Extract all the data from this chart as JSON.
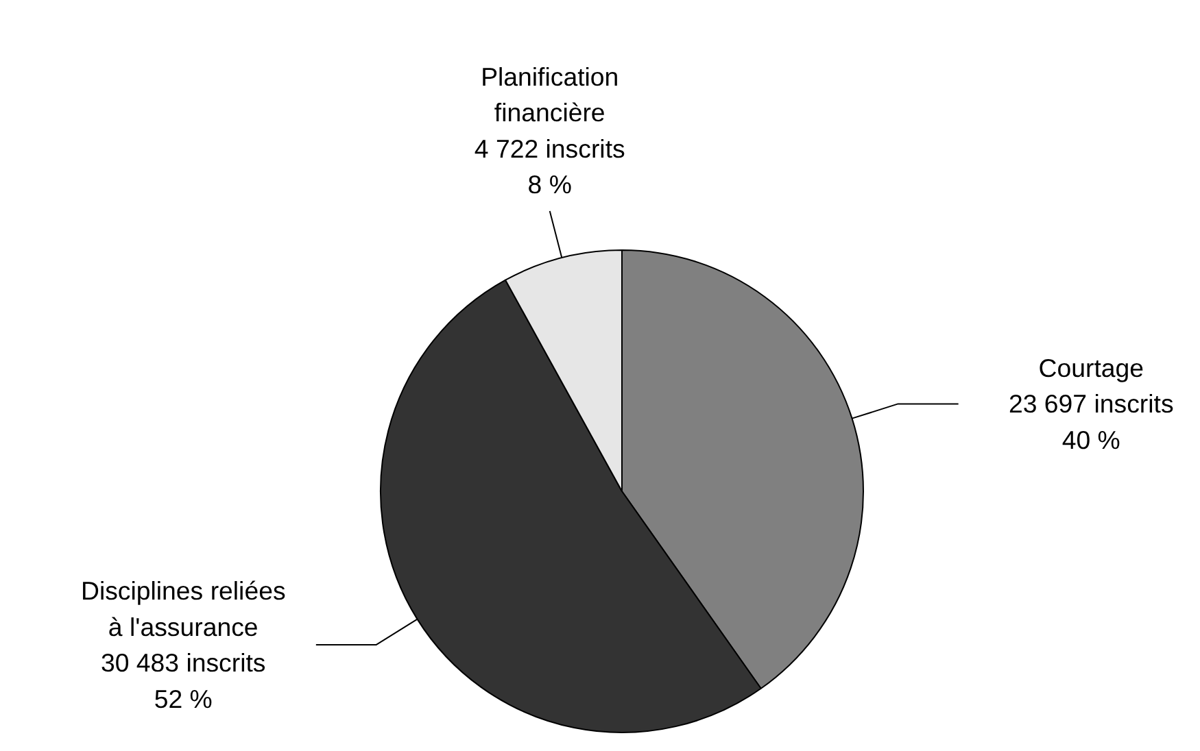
{
  "chart_data": {
    "type": "pie",
    "categories": [
      "Courtage",
      "Disciplines reliées à l'assurance",
      "Planification financière"
    ],
    "values": [
      23697,
      30483,
      4722
    ],
    "colors": [
      "#808080",
      "#333333",
      "#e6e6e6"
    ],
    "value_labels": [
      "23 697 inscrits\n40 %",
      "30 483 inscrits\n52 %",
      "4 722 inscrits\n8 %"
    ]
  }
}
